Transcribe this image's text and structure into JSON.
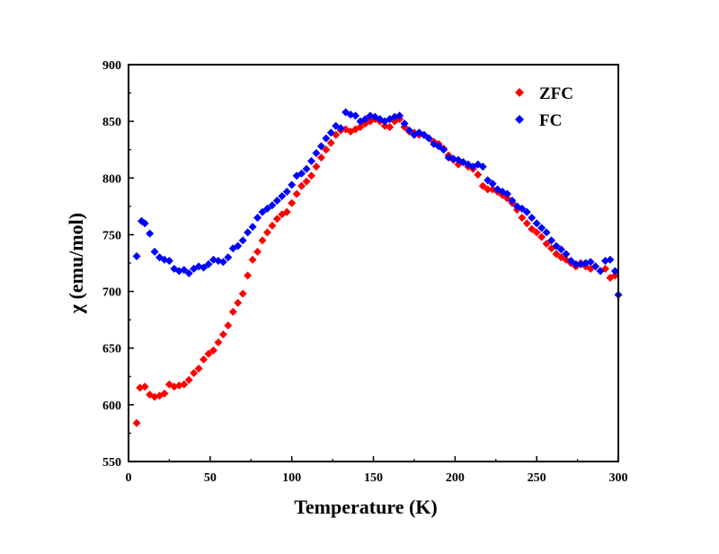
{
  "chart_data": {
    "type": "scatter",
    "title": "",
    "xlabel": "Temperature (K)",
    "ylabel": "χ (emu/mol)",
    "xlim": [
      0,
      300
    ],
    "ylim": [
      550,
      900
    ],
    "xticks": [
      0,
      50,
      100,
      150,
      200,
      250,
      300
    ],
    "yticks": [
      550,
      600,
      650,
      700,
      750,
      800,
      850,
      900
    ],
    "grid": false,
    "legend_position": "top-right",
    "marker": "diamond",
    "series": [
      {
        "name": "ZFC",
        "color": "#ff0000",
        "points": [
          [
            5,
            584
          ],
          [
            7,
            615
          ],
          [
            10,
            616
          ],
          [
            13,
            609
          ],
          [
            16,
            607
          ],
          [
            19,
            608
          ],
          [
            22,
            610
          ],
          [
            25,
            618
          ],
          [
            28,
            616
          ],
          [
            31,
            617
          ],
          [
            34,
            618
          ],
          [
            37,
            622
          ],
          [
            40,
            628
          ],
          [
            43,
            632
          ],
          [
            46,
            640
          ],
          [
            49,
            645
          ],
          [
            52,
            648
          ],
          [
            55,
            655
          ],
          [
            58,
            662
          ],
          [
            61,
            670
          ],
          [
            64,
            682
          ],
          [
            67,
            690
          ],
          [
            70,
            698
          ],
          [
            73,
            714
          ],
          [
            76,
            728
          ],
          [
            79,
            735
          ],
          [
            82,
            745
          ],
          [
            85,
            752
          ],
          [
            88,
            758
          ],
          [
            91,
            764
          ],
          [
            94,
            768
          ],
          [
            97,
            770
          ],
          [
            100,
            778
          ],
          [
            103,
            786
          ],
          [
            106,
            793
          ],
          [
            109,
            797
          ],
          [
            112,
            802
          ],
          [
            115,
            810
          ],
          [
            118,
            818
          ],
          [
            121,
            825
          ],
          [
            124,
            831
          ],
          [
            127,
            838
          ],
          [
            130,
            842
          ],
          [
            133,
            843
          ],
          [
            136,
            841
          ],
          [
            139,
            843
          ],
          [
            142,
            845
          ],
          [
            145,
            848
          ],
          [
            148,
            850
          ],
          [
            151,
            852
          ],
          [
            154,
            850
          ],
          [
            157,
            846
          ],
          [
            160,
            845
          ],
          [
            163,
            850
          ],
          [
            166,
            852
          ],
          [
            169,
            845
          ],
          [
            172,
            841
          ],
          [
            175,
            840
          ],
          [
            178,
            838
          ],
          [
            181,
            838
          ],
          [
            184,
            835
          ],
          [
            187,
            832
          ],
          [
            190,
            830
          ],
          [
            193,
            826
          ],
          [
            196,
            820
          ],
          [
            199,
            816
          ],
          [
            202,
            812
          ],
          [
            205,
            814
          ],
          [
            208,
            810
          ],
          [
            211,
            808
          ],
          [
            214,
            803
          ],
          [
            217,
            793
          ],
          [
            220,
            790
          ],
          [
            223,
            790
          ],
          [
            226,
            788
          ],
          [
            229,
            785
          ],
          [
            232,
            782
          ],
          [
            235,
            778
          ],
          [
            238,
            772
          ],
          [
            241,
            765
          ],
          [
            244,
            760
          ],
          [
            247,
            755
          ],
          [
            250,
            752
          ],
          [
            253,
            748
          ],
          [
            256,
            742
          ],
          [
            259,
            738
          ],
          [
            262,
            733
          ],
          [
            265,
            730
          ],
          [
            268,
            728
          ],
          [
            271,
            725
          ],
          [
            274,
            722
          ],
          [
            277,
            725
          ],
          [
            280,
            722
          ],
          [
            283,
            720
          ],
          [
            286,
            722
          ],
          [
            289,
            718
          ],
          [
            292,
            720
          ],
          [
            295,
            712
          ],
          [
            298,
            714
          ]
        ]
      },
      {
        "name": "FC",
        "color": "#0000ff",
        "points": [
          [
            5,
            731
          ],
          [
            8,
            762
          ],
          [
            10,
            760
          ],
          [
            13,
            751
          ],
          [
            16,
            735
          ],
          [
            19,
            730
          ],
          [
            22,
            728
          ],
          [
            25,
            727
          ],
          [
            28,
            720
          ],
          [
            31,
            718
          ],
          [
            34,
            719
          ],
          [
            37,
            716
          ],
          [
            40,
            720
          ],
          [
            43,
            722
          ],
          [
            46,
            721
          ],
          [
            49,
            724
          ],
          [
            52,
            728
          ],
          [
            55,
            727
          ],
          [
            58,
            726
          ],
          [
            61,
            730
          ],
          [
            64,
            738
          ],
          [
            67,
            740
          ],
          [
            70,
            745
          ],
          [
            73,
            752
          ],
          [
            76,
            757
          ],
          [
            79,
            765
          ],
          [
            82,
            770
          ],
          [
            85,
            773
          ],
          [
            88,
            776
          ],
          [
            91,
            780
          ],
          [
            94,
            784
          ],
          [
            97,
            788
          ],
          [
            100,
            794
          ],
          [
            103,
            802
          ],
          [
            106,
            804
          ],
          [
            109,
            808
          ],
          [
            112,
            815
          ],
          [
            115,
            822
          ],
          [
            118,
            828
          ],
          [
            121,
            835
          ],
          [
            124,
            840
          ],
          [
            127,
            846
          ],
          [
            130,
            844
          ],
          [
            133,
            858
          ],
          [
            136,
            856
          ],
          [
            139,
            855
          ],
          [
            142,
            850
          ],
          [
            145,
            852
          ],
          [
            148,
            855
          ],
          [
            151,
            854
          ],
          [
            154,
            852
          ],
          [
            157,
            850
          ],
          [
            160,
            852
          ],
          [
            163,
            854
          ],
          [
            166,
            855
          ],
          [
            169,
            848
          ],
          [
            172,
            842
          ],
          [
            175,
            838
          ],
          [
            178,
            840
          ],
          [
            181,
            838
          ],
          [
            184,
            835
          ],
          [
            187,
            830
          ],
          [
            190,
            828
          ],
          [
            193,
            825
          ],
          [
            196,
            818
          ],
          [
            199,
            817
          ],
          [
            202,
            816
          ],
          [
            205,
            814
          ],
          [
            208,
            812
          ],
          [
            211,
            810
          ],
          [
            214,
            812
          ],
          [
            217,
            810
          ],
          [
            220,
            798
          ],
          [
            223,
            795
          ],
          [
            226,
            790
          ],
          [
            229,
            788
          ],
          [
            232,
            786
          ],
          [
            235,
            780
          ],
          [
            238,
            775
          ],
          [
            241,
            773
          ],
          [
            244,
            770
          ],
          [
            247,
            765
          ],
          [
            250,
            760
          ],
          [
            253,
            756
          ],
          [
            256,
            752
          ],
          [
            259,
            745
          ],
          [
            262,
            740
          ],
          [
            265,
            737
          ],
          [
            268,
            733
          ],
          [
            271,
            727
          ],
          [
            274,
            724
          ],
          [
            277,
            724
          ],
          [
            280,
            725
          ],
          [
            283,
            726
          ],
          [
            286,
            722
          ],
          [
            289,
            718
          ],
          [
            292,
            727
          ],
          [
            295,
            728
          ],
          [
            298,
            718
          ],
          [
            300,
            697
          ]
        ]
      }
    ]
  }
}
